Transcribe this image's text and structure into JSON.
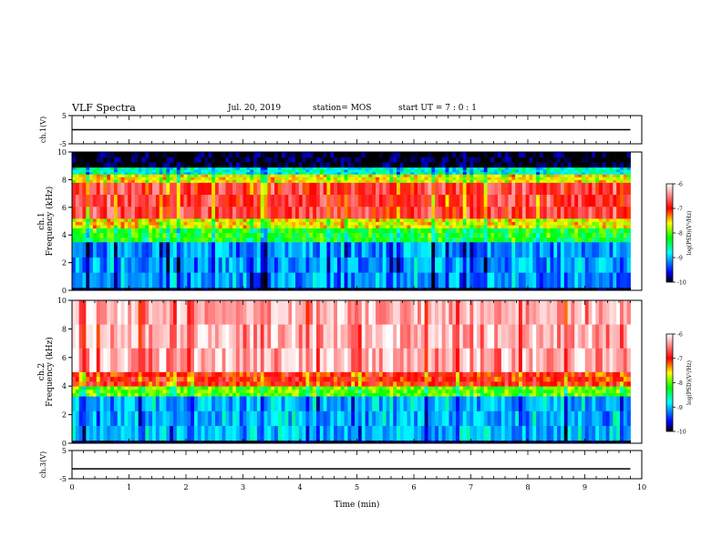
{
  "header": {
    "title": "VLF Spectra",
    "date": "Jul. 20, 2019",
    "station": "station= MOS",
    "start": "start UT =  7 : 0 : 1"
  },
  "chart_data": [
    {
      "id": "ch1-voltage",
      "type": "line",
      "ylabel": "ch.1(V)",
      "yticks": [
        -5,
        5
      ],
      "ylim": [
        -5,
        5
      ],
      "xlim": [
        0,
        10
      ],
      "series": [
        {
          "values_description_constant": 0,
          "x": [
            0,
            9.8
          ],
          "values": [
            0,
            0
          ]
        }
      ]
    },
    {
      "id": "ch1-spectrogram",
      "type": "heatmap",
      "ylabel": "ch.1\nFrequency (kHz)",
      "ylabel_line1": "ch.1",
      "ylabel_line2": "Frequency (kHz)",
      "yticks": [
        0,
        2,
        4,
        6,
        8,
        10
      ],
      "ylim": [
        0,
        10
      ],
      "xlim": [
        0,
        9.8
      ],
      "colorbar": {
        "label": "log(PSD)(V²/Hz)",
        "ticks": [
          -6,
          -7,
          -8,
          -9,
          -10
        ],
        "range": [
          -10,
          -6
        ]
      },
      "bands_log_psd": [
        {
          "from_khz": 0.0,
          "to_khz": 0.2,
          "value": -10
        },
        {
          "from_khz": 0.2,
          "to_khz": 3.5,
          "value": -9.1
        },
        {
          "from_khz": 3.5,
          "to_khz": 4.5,
          "value": -8.2
        },
        {
          "from_khz": 4.5,
          "to_khz": 5.2,
          "value": -7.6
        },
        {
          "from_khz": 5.2,
          "to_khz": 7.8,
          "value": -6.8
        },
        {
          "from_khz": 7.8,
          "to_khz": 8.4,
          "value": -7.6
        },
        {
          "from_khz": 8.4,
          "to_khz": 8.9,
          "value": -8.7
        },
        {
          "from_khz": 8.9,
          "to_khz": 10.0,
          "value": -10
        }
      ]
    },
    {
      "id": "ch2-spectrogram",
      "type": "heatmap",
      "ylabel": "ch.2\nFrequency (kHz)",
      "ylabel_line1": "ch.2",
      "ylabel_line2": "Frequency (kHz)",
      "yticks": [
        0,
        2,
        4,
        6,
        8,
        10
      ],
      "ylim": [
        0,
        10
      ],
      "xlim": [
        0,
        9.8
      ],
      "colorbar": {
        "label": "log(PSD)(V²/Hz)",
        "ticks": [
          -6,
          -7,
          -8,
          -9,
          -10
        ],
        "range": [
          -10,
          -6
        ]
      },
      "bands_log_psd": [
        {
          "from_khz": 0.0,
          "to_khz": 0.2,
          "value": -10
        },
        {
          "from_khz": 0.2,
          "to_khz": 3.3,
          "value": -9.0
        },
        {
          "from_khz": 3.3,
          "to_khz": 4.0,
          "value": -8.0
        },
        {
          "from_khz": 4.0,
          "to_khz": 5.0,
          "value": -7.0
        },
        {
          "from_khz": 5.0,
          "to_khz": 10.0,
          "value": -6.3
        }
      ]
    },
    {
      "id": "ch3-voltage",
      "type": "line",
      "ylabel": "ch.3(V)",
      "yticks": [
        -5,
        5
      ],
      "ylim": [
        -5,
        5
      ],
      "xlim": [
        0,
        10
      ],
      "series": [
        {
          "x": [
            0,
            9.8
          ],
          "values": [
            -1.5,
            -1.5
          ]
        }
      ]
    }
  ],
  "xaxis": {
    "label": "Time (min)",
    "ticks": [
      0,
      1,
      2,
      3,
      4,
      5,
      6,
      7,
      8,
      9,
      10
    ],
    "range": [
      0,
      10
    ]
  },
  "colors": {
    "colormap": [
      "#000000",
      "#0000ff",
      "#00ffff",
      "#00ff00",
      "#ffff00",
      "#ff0000",
      "#ffffff"
    ]
  }
}
